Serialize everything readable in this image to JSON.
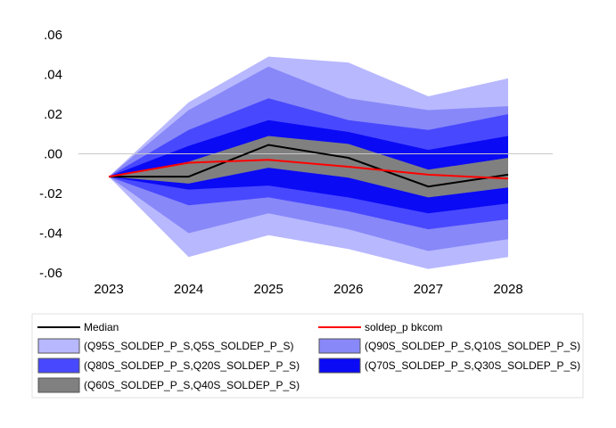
{
  "chart_data": {
    "type": "area",
    "title": "",
    "xlabel": "",
    "ylabel": "",
    "x": [
      "2023",
      "2024",
      "2025",
      "2026",
      "2027",
      "2028"
    ],
    "ylim": [
      -0.06,
      0.06
    ],
    "yticks": [
      0.06,
      0.04,
      0.02,
      0.0,
      -0.02,
      -0.04,
      -0.06
    ],
    "ytick_labels": [
      ".06",
      ".04",
      ".02",
      ".00",
      "-.02",
      "-.04",
      "-.06"
    ],
    "grid": "horizontal zero line only",
    "legend_position": "bottom",
    "colors": {
      "q95_q5": "#b8b8ff",
      "q90_q10": "#8888f8",
      "q80_q20": "#4848ff",
      "q70_q30": "#0a0af5",
      "q60_q40": "#808080",
      "median": "#000000",
      "soldep": "#ff0000",
      "zero_line": "#c8c8c8"
    },
    "bands": [
      {
        "name": "(Q95S_SOLDEP_P_S,Q5S_SOLDEP_P_S)",
        "color_key": "q95_q5",
        "upper": [
          -0.0115,
          0.026,
          0.049,
          0.046,
          0.029,
          0.038
        ],
        "lower": [
          -0.0115,
          -0.052,
          -0.041,
          -0.048,
          -0.058,
          -0.052
        ]
      },
      {
        "name": "(Q90S_SOLDEP_P_S,Q10S_SOLDEP_P_S)",
        "color_key": "q90_q10",
        "upper": [
          -0.0115,
          0.022,
          0.044,
          0.028,
          0.022,
          0.024
        ],
        "lower": [
          -0.0115,
          -0.04,
          -0.03,
          -0.038,
          -0.049,
          -0.043
        ]
      },
      {
        "name": "(Q80S_SOLDEP_P_S,Q20S_SOLDEP_P_S)",
        "color_key": "q80_q20",
        "upper": [
          -0.0115,
          0.012,
          0.028,
          0.017,
          0.012,
          0.02
        ],
        "lower": [
          -0.0115,
          -0.026,
          -0.022,
          -0.029,
          -0.038,
          -0.033
        ]
      },
      {
        "name": "(Q70S_SOLDEP_P_S,Q30S_SOLDEP_P_S)",
        "color_key": "q70_q30",
        "upper": [
          -0.0115,
          0.004,
          0.017,
          0.011,
          0.002,
          0.009
        ],
        "lower": [
          -0.0115,
          -0.018,
          -0.016,
          -0.022,
          -0.03,
          -0.025
        ]
      },
      {
        "name": "(Q60S_SOLDEP_P_S,Q40S_SOLDEP_P_S)",
        "color_key": "q60_q40",
        "upper": [
          -0.0115,
          -0.004,
          0.009,
          0.005,
          -0.008,
          -0.002
        ],
        "lower": [
          -0.0115,
          -0.015,
          -0.007,
          -0.012,
          -0.022,
          -0.017
        ]
      }
    ],
    "series": [
      {
        "name": "Median",
        "color_key": "median",
        "values": [
          -0.0115,
          -0.0115,
          0.0045,
          -0.002,
          -0.0165,
          -0.0105
        ]
      },
      {
        "name": "soldep_p bkcom",
        "color_key": "soldep",
        "values": [
          -0.0115,
          -0.0045,
          -0.003,
          -0.0065,
          -0.0105,
          -0.0125
        ]
      }
    ],
    "legend": [
      {
        "label": "Median",
        "kind": "line",
        "color_key": "median"
      },
      {
        "label": "soldep_p bkcom",
        "kind": "line",
        "color_key": "soldep"
      },
      {
        "label": "(Q95S_SOLDEP_P_S,Q5S_SOLDEP_P_S)",
        "kind": "box",
        "color_key": "q95_q5"
      },
      {
        "label": "(Q90S_SOLDEP_P_S,Q10S_SOLDEP_P_S)",
        "kind": "box",
        "color_key": "q90_q10"
      },
      {
        "label": "(Q80S_SOLDEP_P_S,Q20S_SOLDEP_P_S)",
        "kind": "box",
        "color_key": "q80_q20"
      },
      {
        "label": "(Q70S_SOLDEP_P_S,Q30S_SOLDEP_P_S)",
        "kind": "box",
        "color_key": "q70_q30"
      },
      {
        "label": "(Q60S_SOLDEP_P_S,Q40S_SOLDEP_P_S)",
        "kind": "box",
        "color_key": "q60_q40"
      }
    ]
  }
}
